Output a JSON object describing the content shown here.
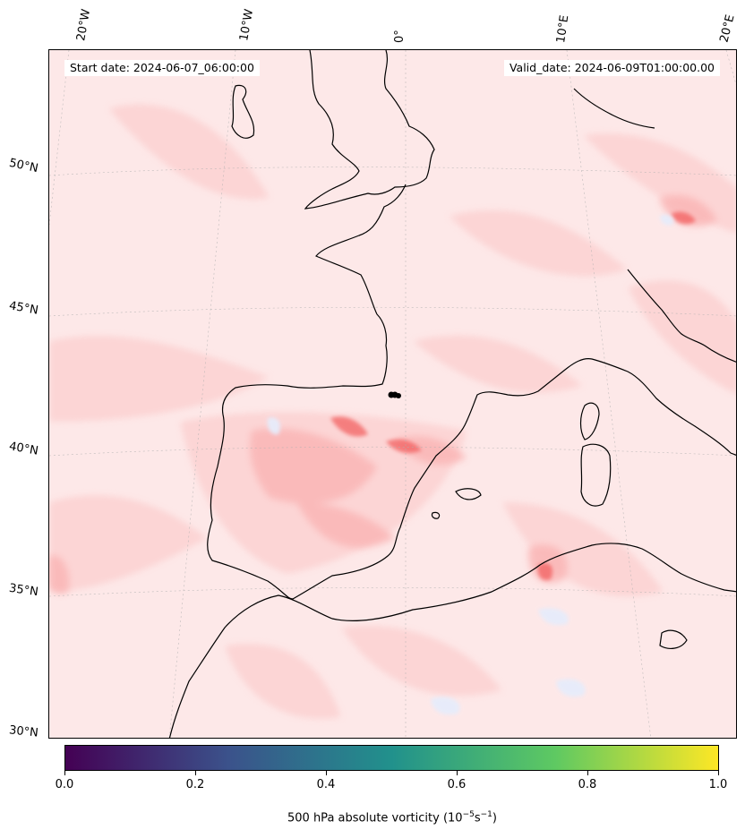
{
  "map": {
    "start_date_text": "Start date: 2024-06-07_06:00:00",
    "valid_date_text": "Valid_date: 2024-06-09T01:00:00.00",
    "lon_labels": [
      "20°W",
      "10°W",
      "0°",
      "10°E",
      "20°E"
    ],
    "lat_labels": [
      "50°N",
      "45°N",
      "40°N",
      "35°N",
      "30°N"
    ],
    "field_colors": {
      "background": "#fde8e8",
      "light": "#fcd3d3",
      "medium": "#fab6b6",
      "strong": "#f25a5a",
      "negative": "#e6ecfb"
    },
    "coastline_color": "#000000"
  },
  "colorbar": {
    "tick_labels": [
      "0.0",
      "0.2",
      "0.4",
      "0.6",
      "0.8",
      "1.0"
    ],
    "label_text": "500 hPa absolute vorticity (10",
    "label_exp1": "−5",
    "label_mid": "s",
    "label_exp2": "−1",
    "label_end": ")",
    "colormap": [
      "#440154",
      "#3b528b",
      "#21918c",
      "#5ec962",
      "#fde725"
    ]
  }
}
